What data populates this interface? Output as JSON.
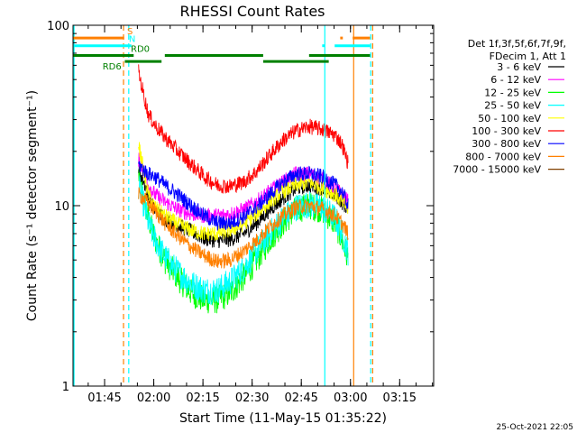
{
  "chart_data": {
    "type": "line",
    "title": "RHESSI Count Rates",
    "xlabel": "Start Time (11-May-15 01:35:22)",
    "ylabel": "Count Rate (s⁻¹ detector segment⁻¹)",
    "yscale": "log",
    "ylim": [
      1,
      100
    ],
    "xlim_min": [
      0,
      110
    ],
    "y_ticks": [
      1,
      10,
      100
    ],
    "y_tick_labels": [
      "1",
      "10",
      "100"
    ],
    "x_ticks": [
      {
        "t": 9.63,
        "label": "01:45"
      },
      {
        "t": 24.63,
        "label": "02:00"
      },
      {
        "t": 39.63,
        "label": "02:15"
      },
      {
        "t": 54.63,
        "label": "02:30"
      },
      {
        "t": 69.63,
        "label": "02:45"
      },
      {
        "t": 84.63,
        "label": "03:00"
      },
      {
        "t": 99.63,
        "label": "03:15"
      }
    ],
    "legend": {
      "placement": "right",
      "header": [
        "Det 1f,3f,5f,6f,7f,9f,",
        "FDecim 1, Att 1"
      ]
    },
    "anchor_times": [
      20,
      22,
      23,
      25,
      28,
      32,
      36,
      40,
      44,
      48,
      52,
      56,
      60,
      64,
      68,
      72,
      76,
      80,
      82,
      84
    ],
    "series": [
      {
        "name": "3 - 6 keV",
        "color": "#000000",
        "values": [
          16,
          13,
          11,
          9.5,
          8.5,
          7.8,
          7.2,
          6.6,
          6.4,
          6.5,
          7.0,
          8.0,
          9.5,
          11.0,
          12.5,
          13.0,
          12.5,
          11.5,
          10.5,
          9.5
        ]
      },
      {
        "name": "6 - 12 keV",
        "color": "#ff00ff",
        "values": [
          18,
          15,
          13,
          11.5,
          10.5,
          9.5,
          9.0,
          8.8,
          8.8,
          9.0,
          9.5,
          10.5,
          12.0,
          13.5,
          15.0,
          15.0,
          14.0,
          12.5,
          11.5,
          10.5
        ]
      },
      {
        "name": "12 - 25 keV",
        "color": "#00ff00",
        "values": [
          15,
          10,
          8.5,
          6.5,
          5.0,
          4.0,
          3.3,
          3.0,
          3.0,
          3.3,
          4.0,
          5.0,
          6.5,
          8.0,
          9.5,
          10.0,
          9.5,
          8.0,
          6.5,
          5.0
        ]
      },
      {
        "name": "25 - 50 keV",
        "color": "#00ffff",
        "values": [
          13,
          9.5,
          8.0,
          6.5,
          5.2,
          4.3,
          3.7,
          3.4,
          3.4,
          3.8,
          4.5,
          5.6,
          7.0,
          8.5,
          9.8,
          10.2,
          9.8,
          8.5,
          7.0,
          5.5
        ]
      },
      {
        "name": "50 - 100 keV",
        "color": "#ffff00",
        "values": [
          22,
          14,
          11.5,
          9.8,
          8.8,
          7.9,
          7.3,
          7.0,
          7.0,
          7.3,
          7.9,
          9.0,
          10.5,
          12.0,
          13.0,
          13.5,
          12.5,
          11.5,
          10.5,
          9.5
        ]
      },
      {
        "name": "100 - 300 keV",
        "color": "#ff0000",
        "values": [
          55,
          38,
          32,
          28,
          24,
          20,
          17,
          14.5,
          13,
          12.8,
          13.5,
          15.5,
          19,
          23,
          26,
          27.5,
          26.5,
          24.5,
          22,
          17
        ]
      },
      {
        "name": "300 - 800 keV",
        "color": "#0000ff",
        "values": [
          17,
          15.5,
          15,
          14.5,
          13,
          11.5,
          10,
          8.8,
          8.0,
          8.0,
          8.7,
          9.8,
          11.5,
          13.5,
          15.0,
          15.0,
          14.5,
          13.0,
          12.0,
          10.0
        ]
      },
      {
        "name": "800 - 7000 keV",
        "color": "#ff8000",
        "values": [
          11.5,
          10.8,
          10.2,
          9.4,
          8.0,
          6.8,
          5.9,
          5.3,
          4.9,
          5.0,
          5.6,
          6.4,
          7.6,
          8.8,
          9.8,
          10.0,
          9.6,
          8.8,
          8.0,
          7.0
        ]
      },
      {
        "name": "7000 - 15000 keV",
        "color": "#804000",
        "values": []
      }
    ],
    "flags": [
      {
        "name": "S",
        "color": "#ff8000",
        "label_time": 16.5,
        "y_level": 85,
        "segments": [
          [
            0,
            15.6
          ],
          [
            81.5,
            82.3
          ],
          [
            85.3,
            90.6
          ]
        ]
      },
      {
        "name": "N",
        "color": "#00ffff",
        "label_time": 17.0,
        "y_level": 77,
        "segments": [
          [
            0,
            17.8
          ],
          [
            76.0,
            76.8
          ],
          [
            79.8,
            90.6
          ]
        ]
      },
      {
        "name": "RD0",
        "color": "#008000",
        "label_time": 17.6,
        "y_level": 68,
        "segments": [
          [
            0,
            18.5
          ],
          [
            28.0,
            58.0
          ],
          [
            72.0,
            90.6
          ]
        ]
      },
      {
        "name": "RD6",
        "color": "#008000",
        "label_time": 9.0,
        "y_level": 63,
        "segments": [
          [
            15.8,
            27.0
          ],
          [
            58.0,
            78.0
          ]
        ]
      }
    ],
    "vertical_markers": [
      {
        "t": 0.3,
        "color": "#00ffff",
        "style": "solid"
      },
      {
        "t": 15.4,
        "color": "#ff8000",
        "style": "dashed"
      },
      {
        "t": 17.0,
        "color": "#00ffff",
        "style": "dashed"
      },
      {
        "t": 76.8,
        "color": "#00ffff",
        "style": "solid"
      },
      {
        "t": 85.6,
        "color": "#ff8000",
        "style": "solid"
      },
      {
        "t": 90.8,
        "color": "#00ffff",
        "style": "dashed"
      },
      {
        "t": 91.4,
        "color": "#ff8000",
        "style": "dashed"
      }
    ],
    "timestamp": "25-Oct-2021 22:05"
  }
}
